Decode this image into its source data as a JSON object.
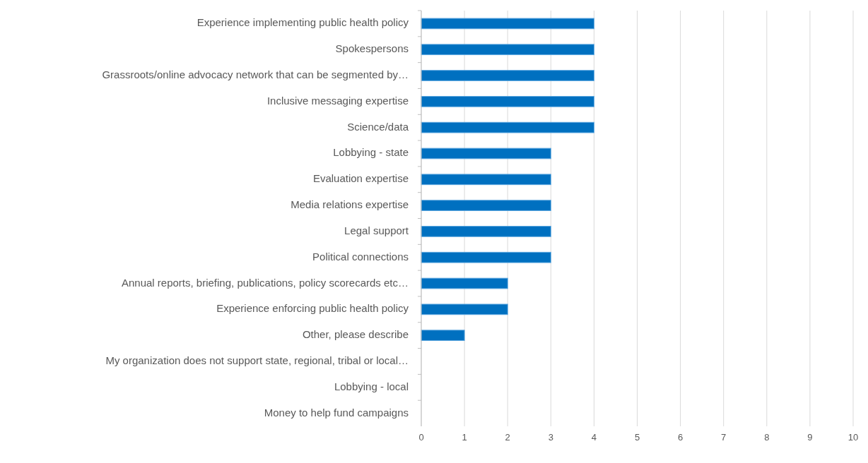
{
  "chart_data": {
    "type": "bar",
    "orientation": "horizontal",
    "categories": [
      "Experience implementing public health policy",
      "Spokespersons",
      "Grassroots/online advocacy network that can be segmented by…",
      "Inclusive messaging expertise",
      "Science/data",
      "Lobbying - state",
      "Evaluation expertise",
      "Media relations expertise",
      "Legal support",
      "Political connections",
      "Annual reports, briefing, publications, policy scorecards etc…",
      "Experience enforcing public health policy",
      "Other, please describe",
      "My organization does not support state, regional, tribal or local…",
      "Lobbying - local",
      "Money to help fund campaigns"
    ],
    "values": [
      4,
      4,
      4,
      4,
      4,
      3,
      3,
      3,
      3,
      3,
      2,
      2,
      1,
      0,
      0,
      0
    ],
    "color": "#0070c0",
    "xlim": [
      0,
      10
    ],
    "xticks": [
      0,
      1,
      2,
      3,
      4,
      5,
      6,
      7,
      8,
      9,
      10
    ],
    "grid": "x"
  }
}
